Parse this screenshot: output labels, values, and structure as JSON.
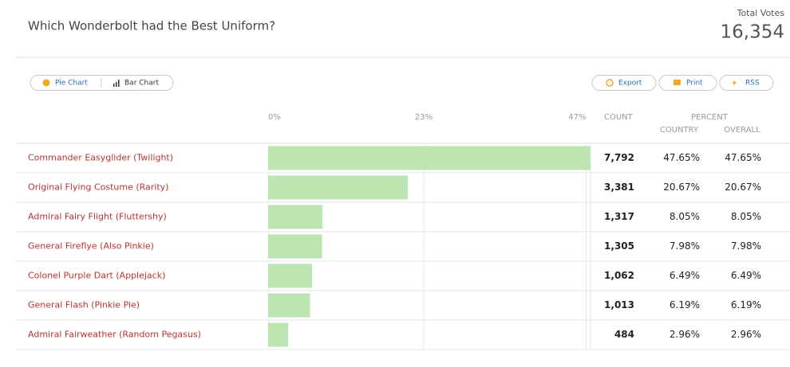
{
  "chart_data": {
    "type": "bar",
    "title": "Which Wonderbolt had the Best Uniform?",
    "total_votes_label": "Total Votes",
    "total_votes": "16,354",
    "buttons": [
      "Pie Chart",
      "Bar Chart",
      "Export",
      "Print",
      "RSS"
    ],
    "count_header": "COUNT",
    "percent_header": "PERCENT",
    "country_header": "COUNTRY",
    "overall_header": "OVERALL",
    "categories": [
      "Commander Easyglider (Twilight)",
      "Original Flying Costume (Rarity)",
      "Admiral Fairy Flight (Fluttershy)",
      "General Fireflye (Also Pinkie)",
      "Colonel Purple Dart (Applejack)",
      "General Flash (Pinkie Pie)",
      "Admiral Fairweather (Random Pegasus)"
    ],
    "values": [
      47.65,
      20.67,
      8.05,
      7.98,
      6.49,
      6.19,
      2.96
    ],
    "value_labels": [
      "47.65%",
      "20.67%",
      "8.05%",
      "7.98%",
      "6.49%",
      "6.19%",
      "2.96%"
    ],
    "overall_labels": [
      "47.65%",
      "20.67%",
      "8.05%",
      "7.98%",
      "6.49%",
      "6.19%",
      "2.96%"
    ],
    "counts": [
      "7,792",
      "3,381",
      "1,317",
      "1,305",
      "1,062",
      "1,013",
      "484"
    ],
    "color": "#bde5b2",
    "xlim": [
      0,
      47.65
    ],
    "xticks": [
      {
        "value": 0,
        "label": "0%"
      },
      {
        "value": 23,
        "label": "23%"
      },
      {
        "value": 47,
        "label": "47%"
      }
    ],
    "grid": true
  }
}
